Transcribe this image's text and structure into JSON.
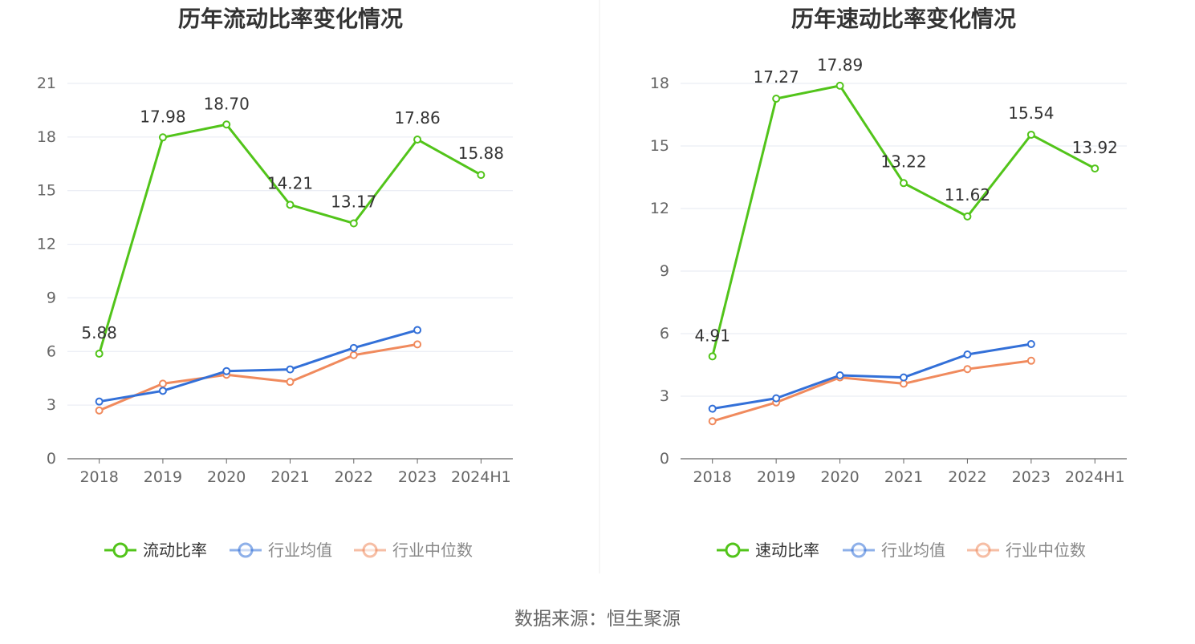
{
  "source_text": "数据来源：恒生聚源",
  "colors": {
    "primary": "#52c41a",
    "mean": "#3370d8",
    "median": "#f08a5d",
    "grid": "#e6e9f2",
    "axis": "#666666",
    "label": "#333333",
    "divider": "#eeeeee"
  },
  "chart_data": [
    {
      "type": "line",
      "title": "历年流动比率变化情况",
      "categories": [
        "2018",
        "2019",
        "2020",
        "2021",
        "2022",
        "2023",
        "2024H1"
      ],
      "ylim": [
        0,
        21
      ],
      "yticks": [
        0,
        3,
        6,
        9,
        12,
        15,
        18,
        21
      ],
      "grid": true,
      "legend_position": "bottom",
      "series": [
        {
          "name": "流动比率",
          "color": "#52c41a",
          "labels": true,
          "values": [
            5.88,
            17.98,
            18.7,
            14.21,
            13.17,
            17.86,
            15.88
          ],
          "display": [
            "5.88",
            "17.98",
            "18.70",
            "14.21",
            "13.17",
            "17.86",
            "15.88"
          ]
        },
        {
          "name": "行业均值",
          "color": "#3370d8",
          "labels": false,
          "values": [
            3.2,
            3.8,
            4.9,
            5.0,
            6.2,
            7.2,
            null
          ]
        },
        {
          "name": "行业中位数",
          "color": "#f08a5d",
          "labels": false,
          "values": [
            2.7,
            4.2,
            4.7,
            4.3,
            5.8,
            6.4,
            null
          ]
        }
      ]
    },
    {
      "type": "line",
      "title": "历年速动比率变化情况",
      "categories": [
        "2018",
        "2019",
        "2020",
        "2021",
        "2022",
        "2023",
        "2024H1"
      ],
      "ylim": [
        0,
        18
      ],
      "yticks": [
        0,
        3,
        6,
        9,
        12,
        15,
        18
      ],
      "grid": true,
      "legend_position": "bottom",
      "series": [
        {
          "name": "速动比率",
          "color": "#52c41a",
          "labels": true,
          "values": [
            4.91,
            17.27,
            17.89,
            13.22,
            11.62,
            15.54,
            13.92
          ],
          "display": [
            "4.91",
            "17.27",
            "17.89",
            "13.22",
            "11.62",
            "15.54",
            "13.92"
          ]
        },
        {
          "name": "行业均值",
          "color": "#3370d8",
          "labels": false,
          "values": [
            2.4,
            2.9,
            4.0,
            3.9,
            5.0,
            5.5,
            null
          ]
        },
        {
          "name": "行业中位数",
          "color": "#f08a5d",
          "labels": false,
          "values": [
            1.8,
            2.7,
            3.9,
            3.6,
            4.3,
            4.7,
            null
          ]
        }
      ]
    }
  ]
}
